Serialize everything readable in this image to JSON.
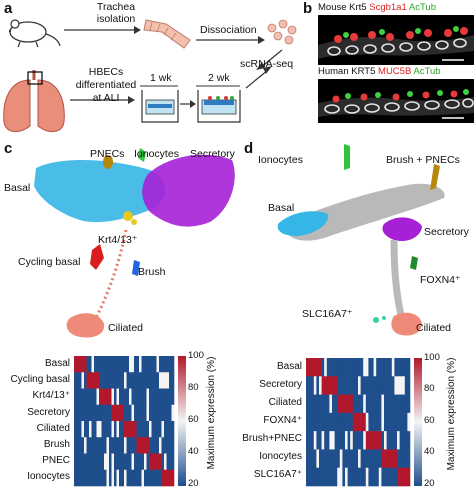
{
  "panels": {
    "a": "a",
    "b": "b",
    "c": "c",
    "d": "d"
  },
  "panel_a": {
    "trachea_isolation": [
      "Trachea",
      "isolation"
    ],
    "dissociation": "Dissociation",
    "hbecs": [
      "HBECs",
      "differentiated",
      "at ALI"
    ],
    "wk1": "1 wk",
    "wk2": "2 wk",
    "scrnaseq": "scRNA-seq"
  },
  "panel_b": {
    "mouse": {
      "species": "Mouse",
      "g1": "Krt5",
      "g2": "Scgb1a1",
      "g3": "AcTub"
    },
    "human": {
      "species": "Human",
      "g1": "KRT5",
      "g2": "MUC5B",
      "g3": "AcTub"
    },
    "colors": {
      "white": "#ffffff",
      "red": "#ff2a2a",
      "green": "#3ecf3e"
    }
  },
  "panel_c": {
    "labels": {
      "pnecs": "PNECs",
      "ionocytes": "Ionocytes",
      "secretory": "Secretory",
      "basal": "Basal",
      "krt": "Krt4/13⁺",
      "cycling": "Cycling basal",
      "brush": "Brush",
      "ciliated": "Ciliated"
    },
    "heatmap_rows": [
      "Basal",
      "Cycling basal",
      "Krt4/13⁺",
      "Secretory",
      "Ciliated",
      "Brush",
      "PNEC",
      "Ionocytes"
    ]
  },
  "panel_d": {
    "labels": {
      "ionocytes": "Ionocytes",
      "brush_pnecs": "Brush + PNECs",
      "basal": "Basal",
      "secretory": "Secretory",
      "foxn4": "FOXN4⁺",
      "slc": "SLC16A7⁺",
      "ciliated": "Ciliated"
    },
    "heatmap_rows": [
      "Basal",
      "Secretory",
      "Ciliated",
      "FOXN4⁺",
      "Brush+PNEC",
      "Ionocytes",
      "SLC16A7⁺"
    ]
  },
  "colorbar": {
    "label": "Maximum expression (%)",
    "ticks": [
      "100",
      "80",
      "60",
      "40",
      "20"
    ],
    "low_color": "#1f4e8c",
    "mid_color": "#f4f4f4",
    "high_color": "#b2182b"
  },
  "cluster_colors": {
    "basal": "#35b6e6",
    "secretory": "#a620d6",
    "ionocytes": "#2fc43a",
    "pnecs": "#b8860b",
    "krt": "#e6c81e",
    "cycling": "#d91c1c",
    "brush": "#2266dd",
    "ciliated": "#f08a78",
    "grey": "#b9b9b9",
    "foxn4": "#1f8a2a"
  }
}
